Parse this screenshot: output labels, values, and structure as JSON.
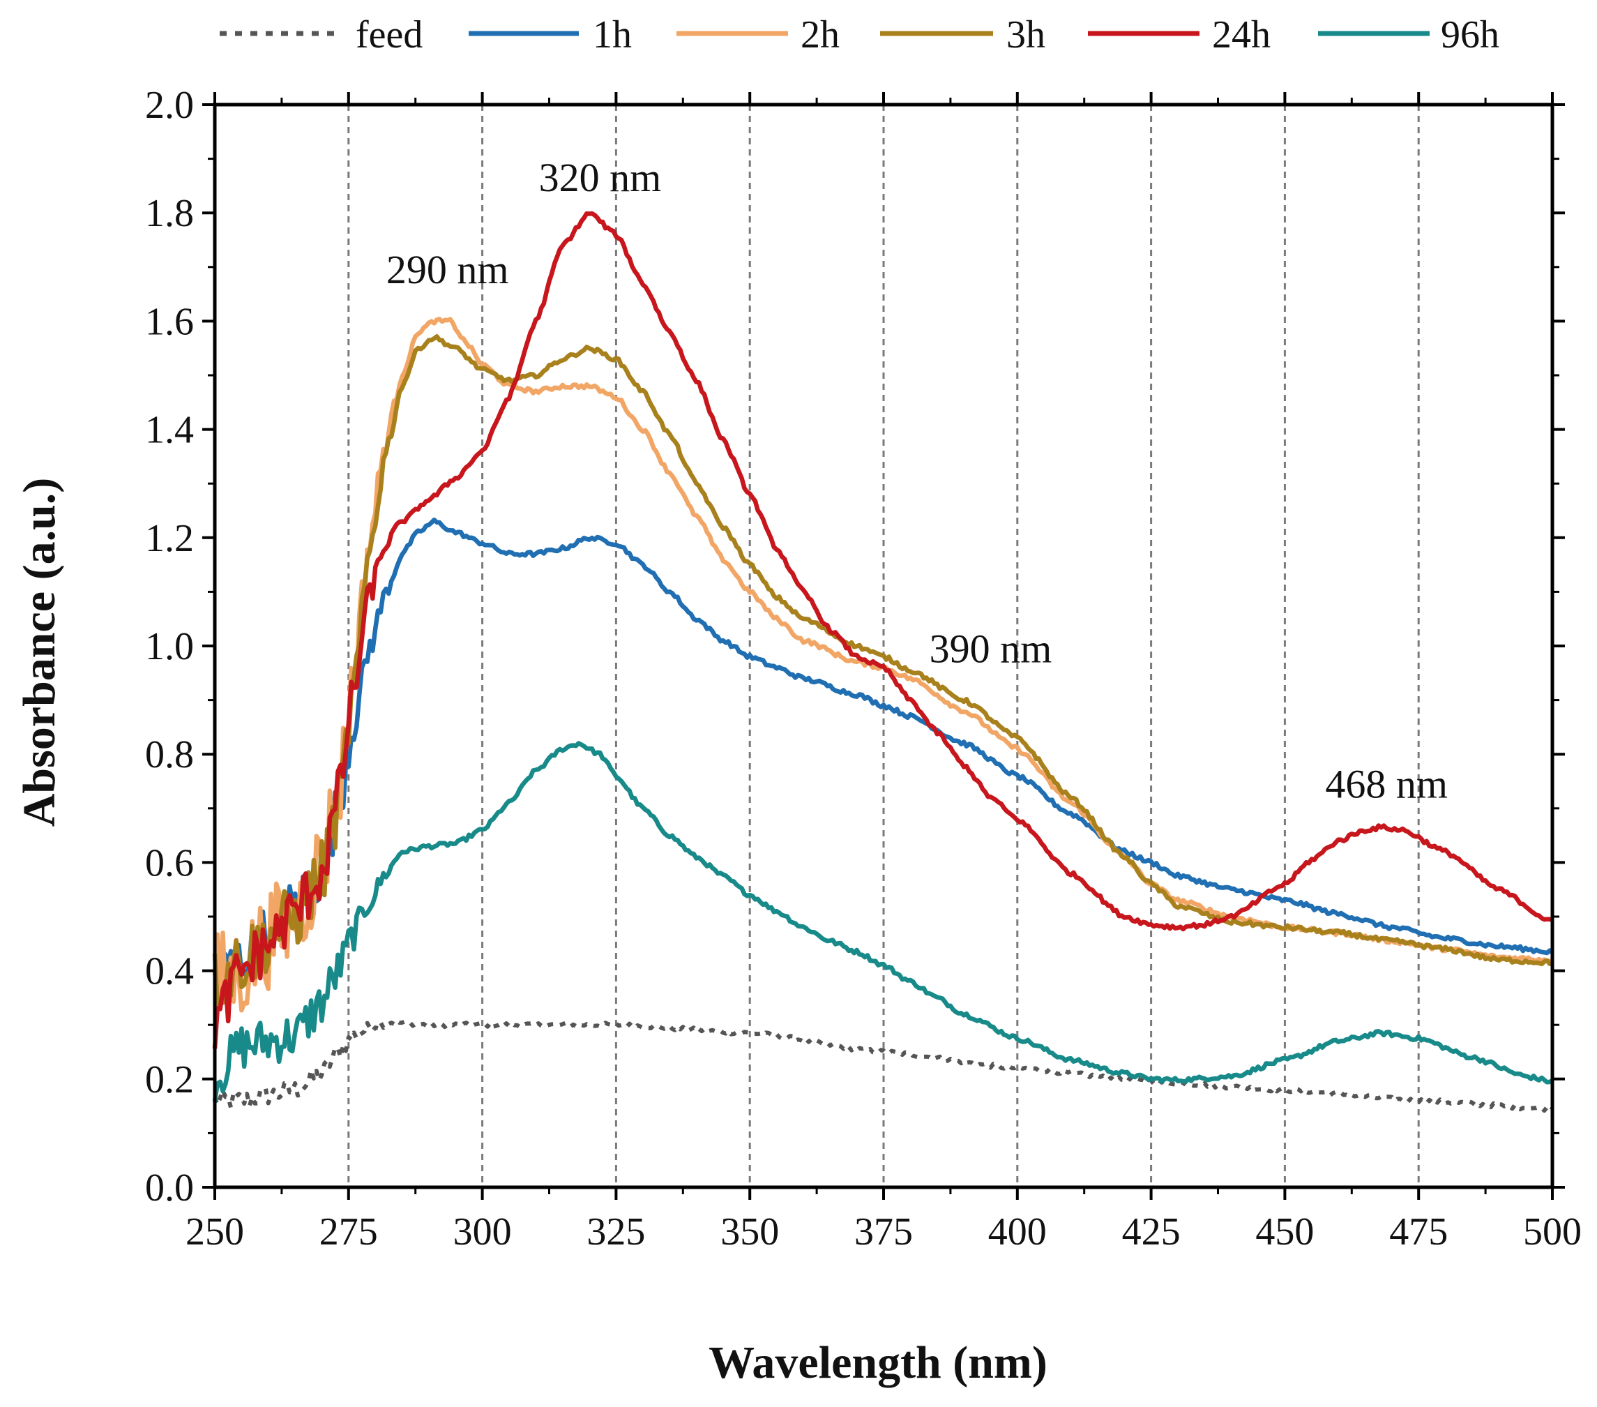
{
  "chart_data": {
    "type": "line",
    "title": "",
    "xlabel": "Wavelength (nm)",
    "ylabel": "Absorbance (a.u.)",
    "xlim": [
      250,
      500
    ],
    "ylim": [
      0.0,
      2.0
    ],
    "xticks": [
      250,
      275,
      300,
      325,
      350,
      375,
      400,
      425,
      450,
      475,
      500
    ],
    "xtick_labels": [
      "250",
      "275",
      "300",
      "325",
      "350",
      "375",
      "400",
      "425",
      "450",
      "475",
      "500"
    ],
    "yticks": [
      0.0,
      0.2,
      0.4,
      0.6,
      0.8,
      1.0,
      1.2,
      1.4,
      1.6,
      1.8,
      2.0
    ],
    "ytick_labels": [
      "0.0",
      "0.2",
      "0.4",
      "0.6",
      "0.8",
      "1.0",
      "1.2",
      "1.4",
      "1.6",
      "1.8",
      "2.0"
    ],
    "vertical_gridlines": [
      275,
      300,
      325,
      350,
      375,
      400,
      425,
      450,
      475
    ],
    "legend_position": "top",
    "series": [
      {
        "name": "feed",
        "color": "#555555",
        "style": "dotted",
        "noise": 0.015,
        "points": [
          [
            250,
            0.16
          ],
          [
            255,
            0.16
          ],
          [
            260,
            0.17
          ],
          [
            265,
            0.18
          ],
          [
            270,
            0.21
          ],
          [
            273,
            0.25
          ],
          [
            276,
            0.28
          ],
          [
            280,
            0.3
          ],
          [
            283,
            0.305
          ],
          [
            290,
            0.3
          ],
          [
            300,
            0.3
          ],
          [
            325,
            0.3
          ],
          [
            350,
            0.285
          ],
          [
            375,
            0.25
          ],
          [
            400,
            0.22
          ],
          [
            425,
            0.195
          ],
          [
            450,
            0.18
          ],
          [
            475,
            0.16
          ],
          [
            500,
            0.145
          ]
        ]
      },
      {
        "name": "1h",
        "color": "#1f6fb2",
        "style": "solid",
        "noise": 0.05,
        "points": [
          [
            250,
            0.38
          ],
          [
            255,
            0.42
          ],
          [
            260,
            0.47
          ],
          [
            265,
            0.52
          ],
          [
            270,
            0.58
          ],
          [
            273,
            0.7
          ],
          [
            276,
            0.86
          ],
          [
            279,
            1.0
          ],
          [
            282,
            1.1
          ],
          [
            285,
            1.17
          ],
          [
            288,
            1.21
          ],
          [
            291,
            1.23
          ],
          [
            295,
            1.21
          ],
          [
            300,
            1.19
          ],
          [
            305,
            1.17
          ],
          [
            310,
            1.17
          ],
          [
            315,
            1.18
          ],
          [
            320,
            1.2
          ],
          [
            325,
            1.19
          ],
          [
            330,
            1.15
          ],
          [
            335,
            1.1
          ],
          [
            340,
            1.05
          ],
          [
            345,
            1.01
          ],
          [
            350,
            0.98
          ],
          [
            355,
            0.96
          ],
          [
            360,
            0.94
          ],
          [
            370,
            0.91
          ],
          [
            375,
            0.89
          ],
          [
            380,
            0.87
          ],
          [
            390,
            0.82
          ],
          [
            400,
            0.76
          ],
          [
            410,
            0.69
          ],
          [
            420,
            0.62
          ],
          [
            425,
            0.6
          ],
          [
            430,
            0.575
          ],
          [
            440,
            0.55
          ],
          [
            450,
            0.53
          ],
          [
            460,
            0.505
          ],
          [
            470,
            0.48
          ],
          [
            480,
            0.46
          ],
          [
            490,
            0.445
          ],
          [
            500,
            0.435
          ]
        ]
      },
      {
        "name": "2h",
        "color": "#f2a666",
        "style": "solid",
        "noise": 0.09,
        "points": [
          [
            250,
            0.38
          ],
          [
            255,
            0.4
          ],
          [
            260,
            0.46
          ],
          [
            265,
            0.5
          ],
          [
            270,
            0.6
          ],
          [
            273,
            0.72
          ],
          [
            276,
            0.95
          ],
          [
            279,
            1.2
          ],
          [
            282,
            1.38
          ],
          [
            285,
            1.5
          ],
          [
            288,
            1.58
          ],
          [
            291,
            1.6
          ],
          [
            294,
            1.6
          ],
          [
            297,
            1.56
          ],
          [
            300,
            1.52
          ],
          [
            305,
            1.48
          ],
          [
            310,
            1.47
          ],
          [
            315,
            1.48
          ],
          [
            320,
            1.48
          ],
          [
            325,
            1.46
          ],
          [
            330,
            1.4
          ],
          [
            335,
            1.32
          ],
          [
            340,
            1.24
          ],
          [
            345,
            1.16
          ],
          [
            350,
            1.1
          ],
          [
            355,
            1.05
          ],
          [
            360,
            1.01
          ],
          [
            370,
            0.97
          ],
          [
            375,
            0.96
          ],
          [
            380,
            0.94
          ],
          [
            390,
            0.88
          ],
          [
            400,
            0.81
          ],
          [
            410,
            0.71
          ],
          [
            420,
            0.61
          ],
          [
            425,
            0.56
          ],
          [
            430,
            0.53
          ],
          [
            440,
            0.5
          ],
          [
            450,
            0.48
          ],
          [
            460,
            0.47
          ],
          [
            470,
            0.455
          ],
          [
            480,
            0.44
          ],
          [
            490,
            0.425
          ],
          [
            500,
            0.42
          ]
        ]
      },
      {
        "name": "3h",
        "color": "#a8801c",
        "style": "solid",
        "noise": 0.06,
        "points": [
          [
            250,
            0.38
          ],
          [
            255,
            0.42
          ],
          [
            260,
            0.46
          ],
          [
            265,
            0.5
          ],
          [
            270,
            0.58
          ],
          [
            273,
            0.7
          ],
          [
            276,
            0.92
          ],
          [
            279,
            1.18
          ],
          [
            282,
            1.36
          ],
          [
            285,
            1.48
          ],
          [
            288,
            1.55
          ],
          [
            291,
            1.57
          ],
          [
            295,
            1.55
          ],
          [
            300,
            1.51
          ],
          [
            305,
            1.49
          ],
          [
            310,
            1.5
          ],
          [
            315,
            1.53
          ],
          [
            320,
            1.55
          ],
          [
            325,
            1.53
          ],
          [
            330,
            1.47
          ],
          [
            335,
            1.39
          ],
          [
            340,
            1.3
          ],
          [
            345,
            1.22
          ],
          [
            350,
            1.15
          ],
          [
            355,
            1.09
          ],
          [
            360,
            1.05
          ],
          [
            370,
            1.0
          ],
          [
            375,
            0.98
          ],
          [
            380,
            0.955
          ],
          [
            390,
            0.9
          ],
          [
            400,
            0.83
          ],
          [
            410,
            0.72
          ],
          [
            420,
            0.61
          ],
          [
            425,
            0.56
          ],
          [
            430,
            0.52
          ],
          [
            440,
            0.49
          ],
          [
            450,
            0.48
          ],
          [
            460,
            0.47
          ],
          [
            470,
            0.455
          ],
          [
            480,
            0.44
          ],
          [
            490,
            0.42
          ],
          [
            500,
            0.415
          ]
        ]
      },
      {
        "name": "24h",
        "color": "#c8161d",
        "style": "solid",
        "noise": 0.05,
        "points": [
          [
            250,
            0.3
          ],
          [
            255,
            0.4
          ],
          [
            260,
            0.45
          ],
          [
            265,
            0.51
          ],
          [
            270,
            0.58
          ],
          [
            273,
            0.72
          ],
          [
            276,
            0.92
          ],
          [
            279,
            1.1
          ],
          [
            282,
            1.19
          ],
          [
            285,
            1.23
          ],
          [
            290,
            1.27
          ],
          [
            295,
            1.31
          ],
          [
            300,
            1.36
          ],
          [
            305,
            1.46
          ],
          [
            310,
            1.6
          ],
          [
            315,
            1.74
          ],
          [
            320,
            1.8
          ],
          [
            325,
            1.76
          ],
          [
            330,
            1.67
          ],
          [
            335,
            1.58
          ],
          [
            340,
            1.49
          ],
          [
            345,
            1.38
          ],
          [
            350,
            1.28
          ],
          [
            355,
            1.18
          ],
          [
            360,
            1.1
          ],
          [
            365,
            1.03
          ],
          [
            370,
            0.98
          ],
          [
            375,
            0.96
          ],
          [
            380,
            0.9
          ],
          [
            385,
            0.84
          ],
          [
            390,
            0.78
          ],
          [
            395,
            0.72
          ],
          [
            400,
            0.68
          ],
          [
            410,
            0.58
          ],
          [
            420,
            0.5
          ],
          [
            425,
            0.485
          ],
          [
            430,
            0.48
          ],
          [
            435,
            0.485
          ],
          [
            440,
            0.5
          ],
          [
            450,
            0.56
          ],
          [
            455,
            0.605
          ],
          [
            460,
            0.64
          ],
          [
            465,
            0.66
          ],
          [
            468,
            0.665
          ],
          [
            472,
            0.66
          ],
          [
            480,
            0.62
          ],
          [
            490,
            0.55
          ],
          [
            500,
            0.49
          ]
        ]
      },
      {
        "name": "96h",
        "color": "#178a89",
        "style": "solid",
        "noise": 0.04,
        "points": [
          [
            250,
            0.2
          ],
          [
            255,
            0.26
          ],
          [
            260,
            0.27
          ],
          [
            265,
            0.28
          ],
          [
            270,
            0.34
          ],
          [
            273,
            0.4
          ],
          [
            276,
            0.47
          ],
          [
            279,
            0.53
          ],
          [
            282,
            0.58
          ],
          [
            285,
            0.62
          ],
          [
            290,
            0.63
          ],
          [
            295,
            0.635
          ],
          [
            300,
            0.66
          ],
          [
            305,
            0.71
          ],
          [
            310,
            0.77
          ],
          [
            315,
            0.81
          ],
          [
            318,
            0.82
          ],
          [
            322,
            0.8
          ],
          [
            325,
            0.76
          ],
          [
            330,
            0.7
          ],
          [
            335,
            0.65
          ],
          [
            340,
            0.61
          ],
          [
            345,
            0.575
          ],
          [
            350,
            0.54
          ],
          [
            355,
            0.51
          ],
          [
            360,
            0.48
          ],
          [
            365,
            0.455
          ],
          [
            370,
            0.435
          ],
          [
            375,
            0.41
          ],
          [
            380,
            0.38
          ],
          [
            385,
            0.35
          ],
          [
            390,
            0.32
          ],
          [
            400,
            0.275
          ],
          [
            410,
            0.235
          ],
          [
            420,
            0.21
          ],
          [
            425,
            0.2
          ],
          [
            430,
            0.198
          ],
          [
            440,
            0.205
          ],
          [
            450,
            0.235
          ],
          [
            460,
            0.27
          ],
          [
            468,
            0.285
          ],
          [
            475,
            0.275
          ],
          [
            485,
            0.24
          ],
          [
            495,
            0.205
          ],
          [
            500,
            0.195
          ]
        ]
      }
    ],
    "annotations": [
      {
        "text": "290 nm",
        "x": 293.5,
        "y": 1.67
      },
      {
        "text": "320 nm",
        "x": 322,
        "y": 1.84
      },
      {
        "text": "390 nm",
        "x": 395,
        "y": 0.97
      },
      {
        "text": "468 nm",
        "x": 469,
        "y": 0.72
      }
    ]
  }
}
